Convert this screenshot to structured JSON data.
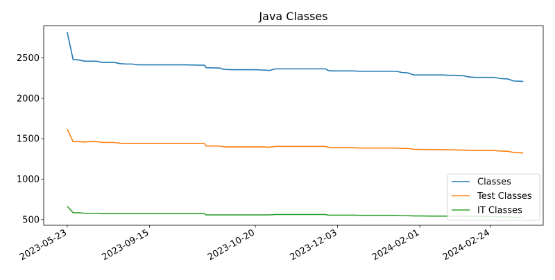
{
  "chart_data": {
    "type": "line",
    "title": "Java Classes",
    "xlabel": "",
    "ylabel": "",
    "x_tick_labels": [
      "2023-05-23",
      "2023-09-15",
      "2023-10-20",
      "2023-12-03",
      "2024-02-01",
      "2024-02-24"
    ],
    "x_tick_positions": [
      0,
      7,
      16,
      23,
      30,
      36
    ],
    "x_range": [
      -2,
      40.5
    ],
    "y_ticks": [
      500,
      1000,
      1500,
      2000,
      2500
    ],
    "ylim": [
      430,
      2900
    ],
    "grid": false,
    "legend_position": "lower-right",
    "series": [
      {
        "name": "Classes",
        "color": "#1f77b4",
        "values": [
          2820,
          2480,
          2475,
          2460,
          2460,
          2460,
          2445,
          2445,
          2445,
          2430,
          2425,
          2425,
          2415,
          2415,
          2415,
          2415,
          2415,
          2415,
          2410,
          2380,
          2375,
          2360,
          2355,
          2355,
          2355,
          2350,
          2345,
          2365,
          2365,
          2365,
          2365,
          2365,
          2345,
          2340,
          2340,
          2340,
          2335,
          2335,
          2335,
          2335,
          2320,
          2315,
          2290,
          2290,
          2290,
          2290,
          2285,
          2285,
          2280,
          2265,
          2260,
          2260,
          2260,
          2245,
          2240,
          2215,
          2210
        ],
        "x": [
          0,
          0.5,
          1,
          1.5,
          2,
          2.5,
          3,
          3.5,
          4,
          4.5,
          5,
          5.5,
          6,
          6.5,
          7,
          8,
          9,
          10,
          11.7,
          11.8,
          13,
          13.3,
          14,
          15,
          16,
          16.7,
          17.2,
          17.7,
          18.5,
          19.5,
          21,
          22,
          22.2,
          22.5,
          23.5,
          24.3,
          25,
          26,
          27,
          28,
          28.5,
          29,
          29.5,
          30,
          31,
          32,
          32.5,
          33,
          33.7,
          34.2,
          34.7,
          35.5,
          36.3,
          36.9,
          37.5,
          38,
          38.8
        ]
      },
      {
        "name": "Test Classes",
        "color": "#ff7f0e",
        "values": [
          1620,
          1465,
          1465,
          1460,
          1465,
          1465,
          1455,
          1455,
          1455,
          1445,
          1440,
          1440,
          1440,
          1440,
          1440,
          1440,
          1440,
          1440,
          1440,
          1410,
          1410,
          1400,
          1400,
          1400,
          1400,
          1400,
          1395,
          1405,
          1405,
          1405,
          1405,
          1405,
          1395,
          1390,
          1390,
          1390,
          1385,
          1385,
          1385,
          1385,
          1380,
          1380,
          1370,
          1368,
          1366,
          1365,
          1363,
          1362,
          1360,
          1358,
          1355,
          1355,
          1355,
          1348,
          1345,
          1330,
          1325
        ],
        "x": [
          0,
          0.5,
          1,
          1.5,
          2,
          2.5,
          3,
          3.5,
          4,
          4.5,
          5,
          5.5,
          6,
          6.5,
          7,
          8,
          9,
          10,
          11.7,
          11.8,
          13,
          13.3,
          14,
          15,
          16,
          16.7,
          17.2,
          17.7,
          18.5,
          19.5,
          21,
          22,
          22.2,
          22.5,
          23.5,
          24.3,
          25,
          26,
          27,
          28,
          28.5,
          29,
          29.5,
          30,
          31,
          32,
          32.5,
          33,
          33.7,
          34.2,
          34.7,
          35.5,
          36.3,
          36.9,
          37.5,
          38,
          38.8
        ]
      },
      {
        "name": "IT Classes",
        "color": "#2ca02c",
        "values": [
          665,
          585,
          585,
          578,
          578,
          578,
          573,
          573,
          573,
          573,
          573,
          573,
          573,
          573,
          573,
          573,
          573,
          573,
          573,
          558,
          558,
          558,
          558,
          558,
          558,
          558,
          558,
          563,
          563,
          563,
          563,
          563,
          555,
          555,
          555,
          555,
          553,
          553,
          553,
          553,
          548,
          548,
          545,
          545,
          543,
          543,
          543,
          543,
          543,
          540,
          540,
          538,
          538,
          535,
          535,
          530,
          528
        ],
        "x": [
          0,
          0.5,
          1,
          1.5,
          2,
          2.5,
          3,
          3.5,
          4,
          4.5,
          5,
          5.5,
          6,
          6.5,
          7,
          8,
          9,
          10,
          11.7,
          11.8,
          13,
          13.3,
          14,
          15,
          16,
          16.7,
          17.2,
          17.7,
          18.5,
          19.5,
          21,
          22,
          22.2,
          22.5,
          23.5,
          24.3,
          25,
          26,
          27,
          28,
          28.5,
          29,
          29.5,
          30,
          31,
          32,
          32.5,
          33,
          33.7,
          34.2,
          34.7,
          35.5,
          36.3,
          36.9,
          37.5,
          38,
          38.8
        ]
      }
    ]
  }
}
